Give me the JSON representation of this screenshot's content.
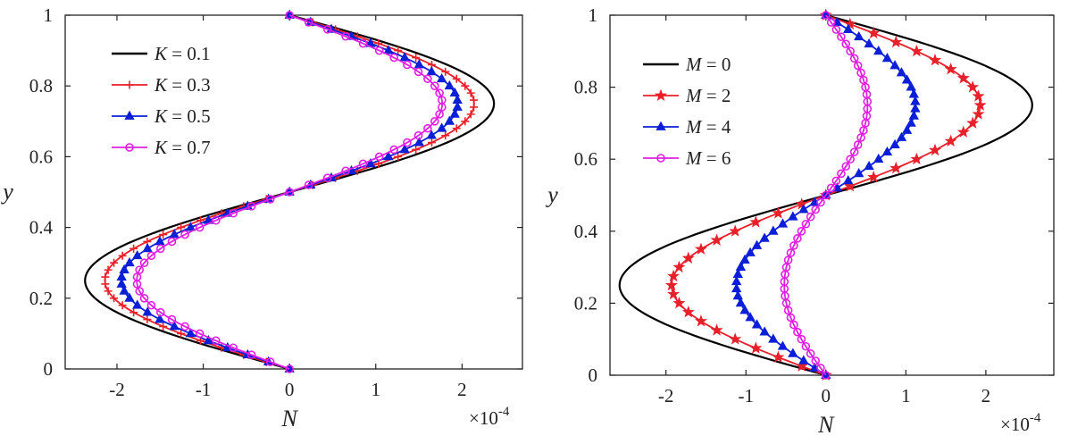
{
  "chart_data": [
    {
      "type": "line",
      "xlabel": "N",
      "ylabel": "y",
      "x_multiplier": "×10",
      "x_multiplier_exp": "-4",
      "xlim": [
        -2.6,
        2.7
      ],
      "ylim": [
        0,
        1
      ],
      "xticks": [
        -2,
        -1,
        0,
        1,
        2
      ],
      "xtick_labels": [
        "-2",
        "-1",
        "0",
        "1",
        "2"
      ],
      "yticks": [
        0,
        0.2,
        0.4,
        0.6,
        0.8,
        1
      ],
      "ytick_labels": [
        "0",
        "0.2",
        "0.4",
        "0.6",
        "0.8",
        "1"
      ],
      "grid": false,
      "legend_position": "upper-left",
      "series": [
        {
          "name": "K = 0.1",
          "var": "K",
          "eq": " = 0.1",
          "color": "#000000",
          "marker": "none",
          "amplitude": 2.37
        },
        {
          "name": "K = 0.3",
          "var": "K",
          "eq": " = 0.3",
          "color": "#e8202a",
          "marker": "plus",
          "amplitude": 2.14
        },
        {
          "name": "K = 0.5",
          "var": "K",
          "eq": " = 0.5",
          "color": "#0b1fd6",
          "marker": "triangle",
          "amplitude": 1.95
        },
        {
          "name": "K = 0.7",
          "var": "K",
          "eq": " = 0.7",
          "color": "#e020e0",
          "marker": "circle",
          "amplitude": 1.77
        }
      ]
    },
    {
      "type": "line",
      "xlabel": "N",
      "ylabel": "y",
      "x_multiplier": "×10",
      "x_multiplier_exp": "-4",
      "xlim": [
        -2.7,
        2.85
      ],
      "ylim": [
        0,
        1
      ],
      "xticks": [
        -2,
        -1,
        0,
        1,
        2
      ],
      "xtick_labels": [
        "-2",
        "-1",
        "0",
        "1",
        "2"
      ],
      "yticks": [
        0,
        0.2,
        0.4,
        0.6,
        0.8,
        1
      ],
      "ytick_labels": [
        "0",
        "0.2",
        "0.4",
        "0.6",
        "0.8",
        "1"
      ],
      "grid": false,
      "legend_position": "upper-left",
      "series": [
        {
          "name": "M = 0",
          "var": "M",
          "eq": " = 0",
          "color": "#000000",
          "marker": "none",
          "amplitude": 2.58
        },
        {
          "name": "M = 2",
          "var": "M",
          "eq": " = 2",
          "color": "#e8202a",
          "marker": "star",
          "amplitude": 1.93
        },
        {
          "name": "M = 4",
          "var": "M",
          "eq": " = 4",
          "color": "#0b1fd6",
          "marker": "triangle",
          "amplitude": 1.12
        },
        {
          "name": "M = 6",
          "var": "M",
          "eq": " = 6",
          "color": "#e020e0",
          "marker": "circle",
          "amplitude": 0.52
        }
      ]
    }
  ]
}
